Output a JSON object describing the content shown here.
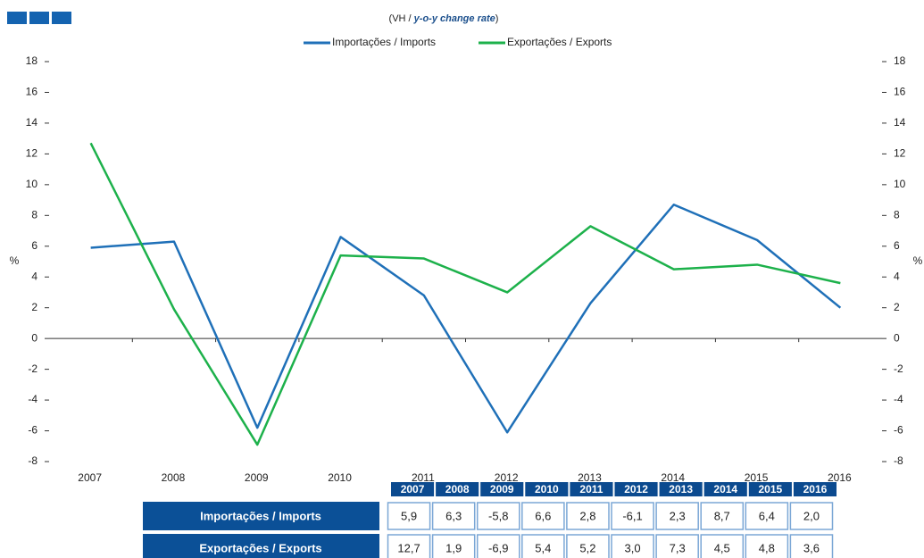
{
  "chart_data": {
    "type": "line",
    "title_parts": [
      "(VH / ",
      "y-o-y change rate",
      ")"
    ],
    "ylabel": "%",
    "y2label": "%",
    "categories": [
      "2007",
      "2008",
      "2009",
      "2010",
      "2011",
      "2012",
      "2013",
      "2014",
      "2015",
      "2016"
    ],
    "series": [
      {
        "name": "Importações / Imports",
        "color": "#1f70b8",
        "values": [
          5.9,
          6.3,
          -5.8,
          6.6,
          2.8,
          -6.1,
          2.3,
          8.7,
          6.4,
          2.0
        ],
        "value_labels": [
          "5,9",
          "6,3",
          "-5,8",
          "6,6",
          "2,8",
          "-6,1",
          "2,3",
          "8,7",
          "6,4",
          "2,0"
        ]
      },
      {
        "name": "Exportações / Exports",
        "color": "#1db14b",
        "values": [
          12.7,
          1.9,
          -6.9,
          5.4,
          5.2,
          3.0,
          7.3,
          4.5,
          4.8,
          3.6
        ],
        "value_labels": [
          "12,7",
          "1,9",
          "-6,9",
          "5,4",
          "5,2",
          "3,0",
          "7,3",
          "4,5",
          "4,8",
          "3,6"
        ]
      }
    ],
    "ylim": [
      -8,
      18
    ],
    "yticks": [
      -8,
      -6,
      -4,
      -2,
      0,
      2,
      4,
      6,
      8,
      10,
      12,
      14,
      16,
      18
    ],
    "y2lim": [
      -8,
      18
    ],
    "y2ticks": [
      -8,
      -6,
      -4,
      -2,
      0,
      2,
      4,
      6,
      8,
      10,
      12,
      14,
      16,
      18
    ],
    "legend": "top",
    "grid": false
  }
}
